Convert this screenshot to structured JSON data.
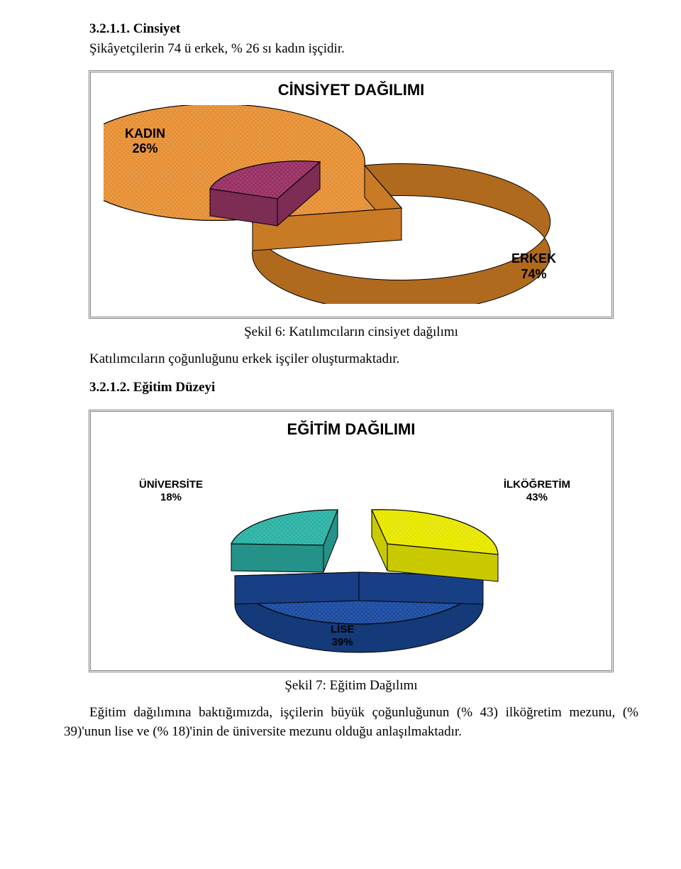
{
  "section1": {
    "heading": "3.2.1.1. Cinsiyet",
    "intro": "Şikâyetçilerin 74 ü erkek, % 26 sı kadın işçidir."
  },
  "chart1": {
    "type": "pie-3d-exploded",
    "title": "CİNSİYET DAĞILIMI",
    "labels": {
      "kadin": "KADIN\n26%",
      "erkek": "ERKEK\n74%"
    },
    "slices": [
      {
        "name": "KADIN",
        "value": 26,
        "color": "#993366",
        "outline": "#000000"
      },
      {
        "name": "ERKEK",
        "value": 74,
        "color": "#e69138",
        "outline": "#000000"
      }
    ],
    "background": "#ffffff",
    "pattern": "dots"
  },
  "caption1": "Şekil 6: Katılımcıların cinsiyet dağılımı",
  "para1": "Katılımcıların çoğunluğunu erkek işçiler oluşturmaktadır.",
  "section2": {
    "heading": "3.2.1.2. Eğitim Düzeyi"
  },
  "chart2": {
    "type": "pie-3d-exploded",
    "title": "EĞİTİM DAĞILIMI",
    "labels": {
      "universite": "ÜNİVERSİTE\n18%",
      "ilkogretim": "İLKÖĞRETİM\n43%",
      "lise": "LİSE\n39%"
    },
    "slices": [
      {
        "name": "İLKÖĞRETİM",
        "value": 43,
        "color": "#e6e600",
        "outline": "#000000"
      },
      {
        "name": "LİSE",
        "value": 39,
        "color": "#1f4ea1",
        "outline": "#000000"
      },
      {
        "name": "ÜNİVERSİTE",
        "value": 18,
        "color": "#2fb3a6",
        "outline": "#000000"
      }
    ],
    "background": "#ffffff",
    "pattern": "dots"
  },
  "caption2": "Şekil 7: Eğitim Dağılımı",
  "para2": "Eğitim dağılımına baktığımızda, işçilerin büyük çoğunluğunun (% 43) ilköğretim mezunu, (% 39)'unun lise ve (% 18)'inin de üniversite mezunu olduğu anlaşılmaktadır."
}
